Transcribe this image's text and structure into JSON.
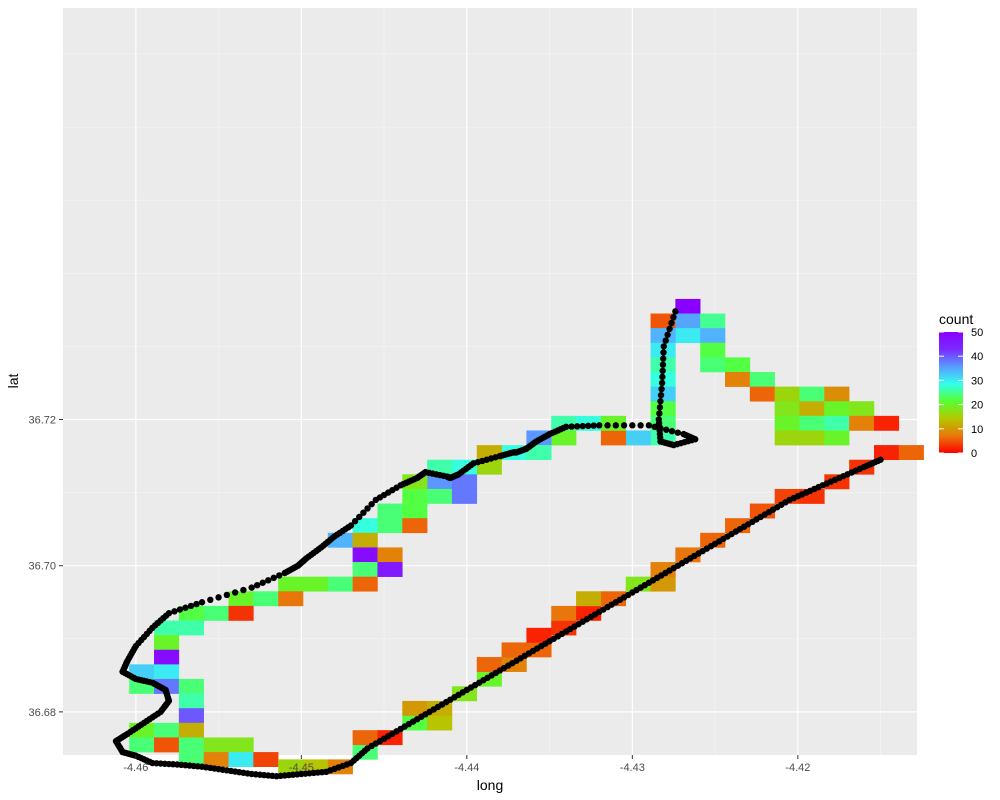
{
  "chart_data": {
    "type": "heatmap",
    "title": "",
    "xlabel": "long",
    "ylabel": "lat",
    "xlim": [
      -4.4644,
      -4.4128
    ],
    "ylim": [
      36.6741,
      36.7763
    ],
    "x_ticks": [
      -4.46,
      -4.45,
      -4.44,
      -4.43,
      -4.42
    ],
    "x_tick_labels": [
      "-4.46",
      "-4.45",
      "-4.44",
      "-4.43",
      "-4.42"
    ],
    "y_ticks": [
      36.68,
      36.7,
      36.72
    ],
    "y_tick_labels": [
      "36.68",
      "36.70",
      "36.72"
    ],
    "grid": true,
    "legend": {
      "title": "count",
      "placement": "right",
      "range": [
        0,
        50
      ],
      "ticks": [
        0,
        10,
        20,
        30,
        40,
        50
      ],
      "tick_labels": [
        "0",
        "10",
        "20",
        "30",
        "40",
        "50"
      ]
    },
    "colorscale": [
      "#ff0000",
      "#e8780a",
      "#b4c800",
      "#55ff33",
      "#33ffee",
      "#5a9bff",
      "#7a2bff",
      "#8a00ff"
    ],
    "tiles": [
      [
        -4.4274,
        36.7345,
        50
      ],
      [
        -4.4289,
        36.7325,
        5
      ],
      [
        -4.4274,
        36.7325,
        35
      ],
      [
        -4.4259,
        36.7325,
        25
      ],
      [
        -4.4274,
        36.7305,
        30
      ],
      [
        -4.4259,
        36.7305,
        34
      ],
      [
        -4.4289,
        36.7305,
        34
      ],
      [
        -4.4289,
        36.7285,
        30
      ],
      [
        -4.4259,
        36.7285,
        22
      ],
      [
        -4.4289,
        36.7265,
        26
      ],
      [
        -4.4259,
        36.7265,
        24
      ],
      [
        -4.4244,
        36.7265,
        22
      ],
      [
        -4.4289,
        36.7245,
        28
      ],
      [
        -4.4244,
        36.7245,
        8
      ],
      [
        -4.4229,
        36.7245,
        24
      ],
      [
        -4.4289,
        36.7225,
        32
      ],
      [
        -4.4229,
        36.7225,
        6
      ],
      [
        -4.4214,
        36.7225,
        16
      ],
      [
        -4.4199,
        36.7225,
        24
      ],
      [
        -4.4184,
        36.7225,
        9
      ],
      [
        -4.4289,
        36.7205,
        22
      ],
      [
        -4.4214,
        36.7205,
        18
      ],
      [
        -4.4199,
        36.7205,
        12
      ],
      [
        -4.4184,
        36.7205,
        20
      ],
      [
        -4.4169,
        36.7205,
        18
      ],
      [
        -4.4289,
        36.7185,
        24
      ],
      [
        -4.4214,
        36.7185,
        20
      ],
      [
        -4.4199,
        36.7185,
        24
      ],
      [
        -4.4184,
        36.7185,
        26
      ],
      [
        -4.4169,
        36.7185,
        8
      ],
      [
        -4.4154,
        36.7185,
        2
      ],
      [
        -4.4289,
        36.7165,
        26
      ],
      [
        -4.4304,
        36.7165,
        32
      ],
      [
        -4.4319,
        36.7165,
        6
      ],
      [
        -4.4349,
        36.7185,
        26
      ],
      [
        -4.4334,
        36.7185,
        28
      ],
      [
        -4.4319,
        36.7185,
        20
      ],
      [
        -4.4349,
        36.7165,
        20
      ],
      [
        -4.4364,
        36.7165,
        36
      ],
      [
        -4.4214,
        36.7165,
        16
      ],
      [
        -4.4199,
        36.7165,
        16
      ],
      [
        -4.4184,
        36.7165,
        20
      ],
      [
        -4.4379,
        36.7145,
        28
      ],
      [
        -4.4364,
        36.7145,
        26
      ],
      [
        -4.4394,
        36.7145,
        12
      ],
      [
        -4.4394,
        36.7125,
        16
      ],
      [
        -4.4409,
        36.7125,
        28
      ],
      [
        -4.4424,
        36.7125,
        26
      ],
      [
        -4.4424,
        36.7105,
        36
      ],
      [
        -4.4409,
        36.7105,
        38
      ],
      [
        -4.4439,
        36.7105,
        18
      ],
      [
        -4.4439,
        36.7085,
        22
      ],
      [
        -4.4424,
        36.7085,
        24
      ],
      [
        -4.4409,
        36.7085,
        38
      ],
      [
        -4.4454,
        36.7065,
        24
      ],
      [
        -4.4439,
        36.7065,
        22
      ],
      [
        -4.4469,
        36.7045,
        28
      ],
      [
        -4.4454,
        36.7045,
        24
      ],
      [
        -4.4439,
        36.7045,
        6
      ],
      [
        -4.4484,
        36.7025,
        34
      ],
      [
        -4.4469,
        36.7025,
        12
      ],
      [
        -4.4469,
        36.7005,
        48
      ],
      [
        -4.4454,
        36.7005,
        8
      ],
      [
        -4.4469,
        36.6985,
        24
      ],
      [
        -4.4454,
        36.6985,
        46
      ],
      [
        -4.4514,
        36.6965,
        20
      ],
      [
        -4.4499,
        36.6965,
        20
      ],
      [
        -4.4484,
        36.6965,
        24
      ],
      [
        -4.4469,
        36.6965,
        6
      ],
      [
        -4.4544,
        36.6945,
        20
      ],
      [
        -4.4529,
        36.6945,
        24
      ],
      [
        -4.4514,
        36.6945,
        7
      ],
      [
        -4.4574,
        36.6925,
        22
      ],
      [
        -4.4559,
        36.6925,
        24
      ],
      [
        -4.4544,
        36.6925,
        3
      ],
      [
        -4.4589,
        36.6905,
        26
      ],
      [
        -4.4574,
        36.6905,
        26
      ],
      [
        -4.4589,
        36.6885,
        20
      ],
      [
        -4.4589,
        36.6865,
        48
      ],
      [
        -4.4604,
        36.6845,
        32
      ],
      [
        -4.4589,
        36.6845,
        30
      ],
      [
        -4.4604,
        36.6825,
        24
      ],
      [
        -4.4589,
        36.6825,
        38
      ],
      [
        -4.4574,
        36.6825,
        24
      ],
      [
        -4.4574,
        36.6805,
        26
      ],
      [
        -4.4574,
        36.6785,
        40
      ],
      [
        -4.4604,
        36.6765,
        20
      ],
      [
        -4.4589,
        36.6765,
        24
      ],
      [
        -4.4574,
        36.6765,
        12
      ],
      [
        -4.4604,
        36.6745,
        24
      ],
      [
        -4.4589,
        36.6745,
        5
      ],
      [
        -4.4574,
        36.6745,
        24
      ],
      [
        -4.4559,
        36.6745,
        18
      ],
      [
        -4.4544,
        36.6745,
        18
      ],
      [
        -4.4574,
        36.6725,
        24
      ],
      [
        -4.4559,
        36.6725,
        8
      ],
      [
        -4.4544,
        36.6725,
        30
      ],
      [
        -4.4529,
        36.6725,
        4
      ],
      [
        -4.4514,
        36.6715,
        16
      ],
      [
        -4.4499,
        36.6715,
        14
      ],
      [
        -4.4484,
        36.6715,
        8
      ],
      [
        -4.4469,
        36.6735,
        24
      ],
      [
        -4.4469,
        36.6755,
        6
      ],
      [
        -4.4454,
        36.6755,
        2
      ],
      [
        -4.4439,
        36.6775,
        22
      ],
      [
        -4.4424,
        36.6775,
        14
      ],
      [
        -4.4439,
        36.6795,
        10
      ],
      [
        -4.4424,
        36.6795,
        12
      ],
      [
        -4.4409,
        36.6815,
        18
      ],
      [
        -4.4394,
        36.6835,
        20
      ],
      [
        -4.4394,
        36.6855,
        6
      ],
      [
        -4.4379,
        36.6855,
        8
      ],
      [
        -4.4379,
        36.6875,
        6
      ],
      [
        -4.4364,
        36.6875,
        6
      ],
      [
        -4.4364,
        36.6895,
        2
      ],
      [
        -4.4349,
        36.6905,
        3
      ],
      [
        -4.4349,
        36.6925,
        7
      ],
      [
        -4.4334,
        36.6925,
        2
      ],
      [
        -4.4334,
        36.6945,
        12
      ],
      [
        -4.4319,
        36.6945,
        6
      ],
      [
        -4.4304,
        36.6965,
        18
      ],
      [
        -4.4289,
        36.6965,
        10
      ],
      [
        -4.4289,
        36.6985,
        8
      ],
      [
        -4.4274,
        36.7005,
        7
      ],
      [
        -4.4259,
        36.7025,
        6
      ],
      [
        -4.4244,
        36.7045,
        6
      ],
      [
        -4.4229,
        36.7065,
        5
      ],
      [
        -4.4214,
        36.7085,
        4
      ],
      [
        -4.4199,
        36.7085,
        3
      ],
      [
        -4.4184,
        36.7105,
        3
      ],
      [
        -4.4169,
        36.7125,
        3
      ],
      [
        -4.4154,
        36.7145,
        2
      ],
      [
        -4.4139,
        36.7145,
        6
      ]
    ],
    "series": [
      {
        "type": "scatter-path",
        "color": "#000000",
        "points": [
          [
            -4.4274,
            36.7348
          ],
          [
            -4.4281,
            36.73
          ],
          [
            -4.4282,
            36.725
          ],
          [
            -4.4284,
            36.72
          ],
          [
            -4.4283,
            36.717
          ],
          [
            -4.4275,
            36.7165
          ],
          [
            -4.4262,
            36.7173
          ],
          [
            -4.4269,
            36.718
          ],
          [
            -4.429,
            36.7192
          ],
          [
            -4.432,
            36.7192
          ],
          [
            -4.434,
            36.719
          ],
          [
            -4.435,
            36.718
          ],
          [
            -4.4358,
            36.717
          ],
          [
            -4.4364,
            36.716
          ],
          [
            -4.437,
            36.7155
          ],
          [
            -4.4372,
            36.7155
          ],
          [
            -4.438,
            36.715
          ],
          [
            -4.4396,
            36.714
          ],
          [
            -4.4405,
            36.7125
          ],
          [
            -4.441,
            36.712
          ],
          [
            -4.4412,
            36.7122
          ],
          [
            -4.4425,
            36.7128
          ],
          [
            -4.443,
            36.712
          ],
          [
            -4.444,
            36.711
          ],
          [
            -4.4455,
            36.709
          ],
          [
            -4.447,
            36.7055
          ],
          [
            -4.448,
            36.704
          ],
          [
            -4.4488,
            36.7025
          ],
          [
            -4.4497,
            36.701
          ],
          [
            -4.4502,
            36.7
          ],
          [
            -4.451,
            36.699
          ],
          [
            -4.453,
            36.697
          ],
          [
            -4.456,
            36.695
          ],
          [
            -4.458,
            36.6935
          ],
          [
            -4.459,
            36.6915
          ],
          [
            -4.46,
            36.689
          ],
          [
            -4.4605,
            36.687
          ],
          [
            -4.4608,
            36.6855
          ],
          [
            -4.46,
            36.6845
          ],
          [
            -4.459,
            36.684
          ],
          [
            -4.4582,
            36.683
          ],
          [
            -4.458,
            36.6815
          ],
          [
            -4.4585,
            36.68
          ],
          [
            -4.4595,
            36.6785
          ],
          [
            -4.4605,
            36.677
          ],
          [
            -4.4612,
            36.676
          ],
          [
            -4.4608,
            36.6745
          ],
          [
            -4.46,
            36.674
          ],
          [
            -4.459,
            36.673
          ],
          [
            -4.4575,
            36.6728
          ],
          [
            -4.456,
            36.6725
          ],
          [
            -4.4545,
            36.672
          ],
          [
            -4.453,
            36.6715
          ],
          [
            -4.4515,
            36.6712
          ],
          [
            -4.45,
            36.6715
          ],
          [
            -4.4485,
            36.6718
          ],
          [
            -4.447,
            36.673
          ],
          [
            -4.446,
            36.675
          ],
          [
            -4.4445,
            36.677
          ],
          [
            -4.443,
            36.679
          ],
          [
            -4.4415,
            36.681
          ],
          [
            -4.44,
            36.683
          ],
          [
            -4.4385,
            36.685
          ],
          [
            -4.437,
            36.687
          ],
          [
            -4.4355,
            36.689
          ],
          [
            -4.434,
            36.691
          ],
          [
            -4.4325,
            36.693
          ],
          [
            -4.431,
            36.695
          ],
          [
            -4.4295,
            36.697
          ],
          [
            -4.428,
            36.699
          ],
          [
            -4.4265,
            36.701
          ],
          [
            -4.425,
            36.703
          ],
          [
            -4.4235,
            36.705
          ],
          [
            -4.422,
            36.707
          ],
          [
            -4.4205,
            36.709
          ],
          [
            -4.419,
            36.7105
          ],
          [
            -4.4175,
            36.712
          ],
          [
            -4.416,
            36.7135
          ],
          [
            -4.415,
            36.7145
          ]
        ]
      }
    ]
  }
}
